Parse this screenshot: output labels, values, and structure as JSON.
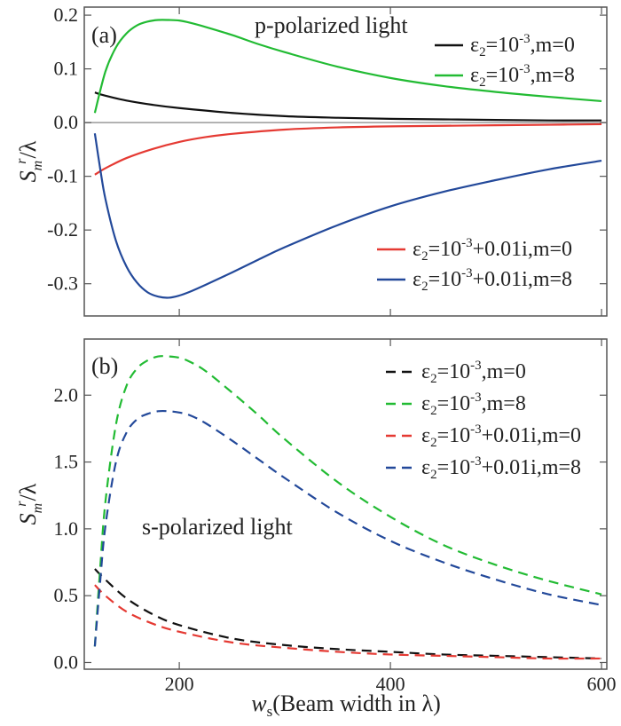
{
  "figure": {
    "xlabel_main": "w",
    "xlabel_sub": "s",
    "xlabel_rest": "(Beam width in λ)",
    "ylabel_main": "S",
    "ylabel_sub": "m",
    "ylabel_sup": "r",
    "ylabel_rest": "/λ"
  },
  "colors": {
    "black": "#111111",
    "green": "#22bb33",
    "red": "#e53a33",
    "blue": "#23499a",
    "zero_line": "#999999"
  },
  "chart_data": [
    {
      "type": "line",
      "panel": "(a)",
      "annotation": "p-polarized light",
      "xlim": [
        110,
        605
      ],
      "ylim": [
        -0.36,
        0.215
      ],
      "xticks": [
        200,
        400,
        600
      ],
      "xtick_labels": [
        "200",
        "400",
        "600"
      ],
      "yticks": [
        -0.3,
        -0.2,
        -0.1,
        0.0,
        0.1,
        0.2
      ],
      "ytick_labels": [
        "-0.3",
        "-0.2",
        "-0.1",
        "0.0",
        "0.1",
        "0.2"
      ],
      "zero_line": true,
      "series": [
        {
          "key": "a_black",
          "name_pre": "ε",
          "name_sub": "2",
          "name_mid": "=10",
          "name_sup": "-3",
          "name_post": ",m=0",
          "color_key": "black",
          "dashed": false,
          "x": [
            120,
            130,
            150,
            175,
            200,
            250,
            300,
            350,
            400,
            450,
            500,
            550,
            600
          ],
          "y": [
            0.056,
            0.05,
            0.041,
            0.033,
            0.027,
            0.018,
            0.012,
            0.009,
            0.007,
            0.006,
            0.005,
            0.004,
            0.004
          ]
        },
        {
          "key": "a_green",
          "name_pre": "ε",
          "name_sub": "2",
          "name_mid": "=10",
          "name_sup": "-3",
          "name_post": ",m=8",
          "color_key": "green",
          "dashed": false,
          "x": [
            120,
            130,
            140,
            150,
            160,
            170,
            180,
            190,
            200,
            210,
            225,
            250,
            275,
            300,
            350,
            400,
            450,
            500,
            550,
            600
          ],
          "y": [
            0.018,
            0.095,
            0.14,
            0.166,
            0.181,
            0.188,
            0.191,
            0.191,
            0.19,
            0.186,
            0.178,
            0.163,
            0.146,
            0.131,
            0.104,
            0.083,
            0.068,
            0.057,
            0.048,
            0.04
          ]
        },
        {
          "key": "a_red",
          "name_pre": "ε",
          "name_sub": "2",
          "name_mid": "=10",
          "name_sup": "-3",
          "name_post": "+0.01i,m=0",
          "color_key": "red",
          "dashed": false,
          "x": [
            120,
            130,
            150,
            175,
            200,
            225,
            250,
            300,
            350,
            400,
            450,
            500,
            550,
            600
          ],
          "y": [
            -0.097,
            -0.085,
            -0.066,
            -0.049,
            -0.036,
            -0.027,
            -0.021,
            -0.013,
            -0.009,
            -0.007,
            -0.006,
            -0.005,
            -0.004,
            -0.003
          ]
        },
        {
          "key": "a_blue",
          "name_pre": "ε",
          "name_sub": "2",
          "name_mid": "=10",
          "name_sup": "-3",
          "name_post": "+0.01i,m=8",
          "color_key": "blue",
          "dashed": false,
          "x": [
            120,
            125,
            130,
            140,
            150,
            160,
            170,
            180,
            190,
            200,
            210,
            225,
            250,
            275,
            300,
            350,
            400,
            450,
            500,
            550,
            600
          ],
          "y": [
            -0.02,
            -0.085,
            -0.142,
            -0.22,
            -0.268,
            -0.298,
            -0.316,
            -0.324,
            -0.326,
            -0.322,
            -0.315,
            -0.302,
            -0.279,
            -0.255,
            -0.232,
            -0.191,
            -0.156,
            -0.129,
            -0.107,
            -0.087,
            -0.071
          ]
        }
      ]
    },
    {
      "type": "line",
      "panel": "(b)",
      "annotation": "s-polarized light",
      "xlim": [
        110,
        605
      ],
      "ylim": [
        -0.05,
        2.42
      ],
      "xticks": [
        200,
        400,
        600
      ],
      "xtick_labels": [
        "200",
        "400",
        "600"
      ],
      "yticks": [
        0.0,
        0.5,
        1.0,
        1.5,
        2.0
      ],
      "ytick_labels": [
        "0.0",
        "0.5",
        "1.0",
        "1.5",
        "2.0"
      ],
      "zero_line": false,
      "series": [
        {
          "key": "b_black",
          "name_pre": "ε",
          "name_sub": "2",
          "name_mid": "=10",
          "name_sup": "-3",
          "name_post": ",m=0",
          "color_key": "black",
          "dashed": true,
          "x": [
            120,
            130,
            150,
            175,
            200,
            250,
            300,
            350,
            400,
            450,
            500,
            550,
            600
          ],
          "y": [
            0.7,
            0.62,
            0.48,
            0.36,
            0.28,
            0.18,
            0.13,
            0.1,
            0.08,
            0.06,
            0.05,
            0.04,
            0.03
          ]
        },
        {
          "key": "b_green",
          "name_pre": "ε",
          "name_sub": "2",
          "name_mid": "=10",
          "name_sup": "-3",
          "name_post": ",m=8",
          "color_key": "green",
          "dashed": true,
          "x": [
            120,
            125,
            130,
            140,
            150,
            160,
            170,
            180,
            190,
            200,
            210,
            225,
            250,
            275,
            300,
            350,
            400,
            450,
            500,
            550,
            600
          ],
          "y": [
            0.12,
            0.7,
            1.2,
            1.78,
            2.07,
            2.2,
            2.26,
            2.29,
            2.29,
            2.28,
            2.25,
            2.18,
            2.02,
            1.85,
            1.67,
            1.35,
            1.09,
            0.88,
            0.73,
            0.61,
            0.51
          ]
        },
        {
          "key": "b_red",
          "name_pre": "ε",
          "name_sub": "2",
          "name_mid": "=10",
          "name_sup": "-3",
          "name_post": "+0.01i,m=0",
          "color_key": "red",
          "dashed": true,
          "x": [
            120,
            130,
            150,
            175,
            200,
            250,
            300,
            350,
            400,
            450,
            500,
            550,
            600
          ],
          "y": [
            0.58,
            0.5,
            0.38,
            0.29,
            0.23,
            0.15,
            0.11,
            0.08,
            0.06,
            0.05,
            0.04,
            0.03,
            0.03
          ]
        },
        {
          "key": "b_blue",
          "name_pre": "ε",
          "name_sub": "2",
          "name_mid": "=10",
          "name_sup": "-3",
          "name_post": "+0.01i,m=8",
          "color_key": "blue",
          "dashed": true,
          "x": [
            120,
            125,
            130,
            140,
            150,
            160,
            170,
            180,
            190,
            200,
            210,
            225,
            250,
            275,
            300,
            350,
            400,
            450,
            500,
            550,
            600
          ],
          "y": [
            0.12,
            0.6,
            1.02,
            1.5,
            1.72,
            1.82,
            1.86,
            1.88,
            1.88,
            1.87,
            1.85,
            1.79,
            1.66,
            1.52,
            1.38,
            1.12,
            0.91,
            0.75,
            0.62,
            0.51,
            0.43
          ]
        }
      ]
    }
  ]
}
